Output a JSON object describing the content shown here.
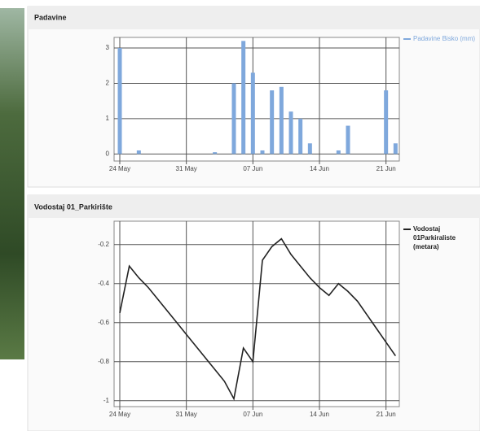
{
  "chart_data": [
    {
      "type": "bar",
      "title": "Padavine",
      "x": [
        "24 May",
        "25 May",
        "26 May",
        "27 May",
        "28 May",
        "29 May",
        "30 May",
        "31 May",
        "01 Jun",
        "02 Jun",
        "03 Jun",
        "04 Jun",
        "05 Jun",
        "06 Jun",
        "07 Jun",
        "08 Jun",
        "09 Jun",
        "10 Jun",
        "11 Jun",
        "12 Jun",
        "13 Jun",
        "14 Jun",
        "15 Jun",
        "16 Jun",
        "17 Jun",
        "18 Jun",
        "19 Jun",
        "20 Jun",
        "21 Jun",
        "22 Jun"
      ],
      "series": [
        {
          "name": "Padavine Bisko (mm)",
          "color": "#7fa8dc",
          "values": [
            3.0,
            0,
            0.1,
            0,
            0,
            0,
            0,
            0,
            0,
            0,
            0.05,
            0,
            2.0,
            3.2,
            2.3,
            0.1,
            1.8,
            1.9,
            1.2,
            1.0,
            0.3,
            0,
            0,
            0.1,
            0.8,
            0,
            0,
            0,
            1.8,
            0.3
          ]
        }
      ],
      "xticks": [
        "24 May",
        "31 May",
        "07 Jun",
        "14 Jun",
        "21 Jun"
      ],
      "ylim": [
        -0.2,
        3.3
      ],
      "yticks": [
        0,
        1,
        2,
        3
      ],
      "grid": true
    },
    {
      "type": "line",
      "title": "Vodostaj 01_Parkirište",
      "x": [
        "24 May",
        "25 May",
        "26 May",
        "27 May",
        "28 May",
        "29 May",
        "30 May",
        "31 May",
        "01 Jun",
        "02 Jun",
        "03 Jun",
        "04 Jun",
        "05 Jun",
        "06 Jun",
        "07 Jun",
        "08 Jun",
        "09 Jun",
        "10 Jun",
        "11 Jun",
        "12 Jun",
        "13 Jun",
        "14 Jun",
        "15 Jun",
        "16 Jun",
        "17 Jun",
        "18 Jun",
        "19 Jun",
        "20 Jun",
        "21 Jun",
        "22 Jun"
      ],
      "series": [
        {
          "name": "Vodostaj 01Parkiraliste (metara)",
          "color": "#222222",
          "values": [
            -0.55,
            -0.31,
            -0.37,
            -0.42,
            -0.48,
            -0.54,
            -0.6,
            -0.66,
            -0.72,
            -0.78,
            -0.84,
            -0.9,
            -0.99,
            -0.73,
            -0.8,
            -0.28,
            -0.21,
            -0.17,
            -0.25,
            -0.31,
            -0.37,
            -0.42,
            -0.46,
            -0.4,
            -0.44,
            -0.49,
            -0.56,
            -0.63,
            -0.7,
            -0.77
          ]
        }
      ],
      "xticks": [
        "24 May",
        "31 May",
        "07 Jun",
        "14 Jun",
        "21 Jun"
      ],
      "ylim": [
        -1.03,
        -0.08
      ],
      "yticks": [
        -0.2,
        -0.4,
        -0.6,
        -0.8,
        -1
      ],
      "grid": true
    }
  ]
}
